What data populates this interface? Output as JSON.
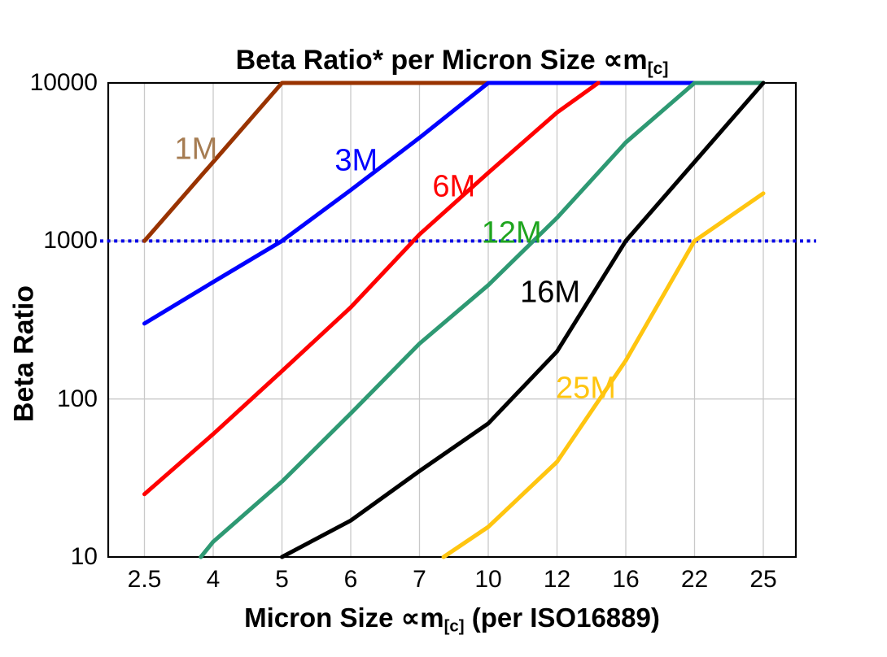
{
  "title": {
    "main": "Beta Ratio* per Micron Size ∝m",
    "sub": "[c]"
  },
  "y_axis": {
    "title": "Beta Ratio",
    "tick_labels": [
      "10000",
      "1000",
      "100",
      "10"
    ],
    "tick_values": [
      10000,
      1000,
      100,
      10
    ],
    "gridlines": [
      100,
      1000
    ]
  },
  "x_axis": {
    "title_pre": "Micron Size ∝m",
    "title_sub": "[c]",
    "title_post": " (per ISO16889)",
    "categories": [
      "2.5",
      "4",
      "5",
      "6",
      "7",
      "10",
      "12",
      "16",
      "22",
      "25"
    ]
  },
  "chart_data": {
    "type": "line",
    "title": "Beta Ratio* per Micron Size ∝m[c]",
    "xlabel": "Micron Size ∝m[c] (per ISO16889)",
    "ylabel": "Beta Ratio",
    "x_scale": "categorical",
    "y_scale": "log",
    "ylim": [
      10,
      10000
    ],
    "y_ticks": [
      10,
      100,
      1000,
      10000
    ],
    "grid": "on",
    "legend": "inline-labels",
    "x_categories": [
      "2.5",
      "4",
      "5",
      "6",
      "7",
      "10",
      "12",
      "16",
      "22",
      "25"
    ],
    "reference_line": {
      "y": 1000,
      "style": "dotted",
      "color": "#0000E6"
    },
    "series": [
      {
        "name": "1M",
        "color": "#993300",
        "label_color": "#A67C52",
        "values_by_category": [
          1000,
          3160,
          10000,
          10000,
          10000,
          10000,
          null,
          null,
          null,
          null
        ],
        "points": [
          [
            0,
            1000
          ],
          [
            1,
            3160
          ],
          [
            2,
            10000
          ],
          [
            5,
            10000
          ]
        ],
        "label_at": [
          0.75,
          3800
        ]
      },
      {
        "name": "3M",
        "color": "#0000FF",
        "label_color": "#0000FF",
        "values_by_category": [
          300,
          550,
          1000,
          2100,
          4500,
          10000,
          10000,
          10000,
          10000,
          null
        ],
        "points": [
          [
            0,
            300
          ],
          [
            1,
            550
          ],
          [
            2,
            1000
          ],
          [
            3,
            2100
          ],
          [
            4,
            4500
          ],
          [
            5,
            10000
          ],
          [
            8,
            10000
          ]
        ],
        "label_at": [
          3.08,
          3200
        ]
      },
      {
        "name": "6M",
        "color": "#FF0000",
        "label_color": "#FF0000",
        "values_by_category": [
          25,
          60,
          150,
          380,
          1100,
          2700,
          6500,
          10000,
          null,
          null
        ],
        "points": [
          [
            0,
            25
          ],
          [
            1,
            60
          ],
          [
            2,
            150
          ],
          [
            3,
            380
          ],
          [
            4,
            1100
          ],
          [
            5,
            2700
          ],
          [
            6,
            6500
          ],
          [
            6.6,
            10000
          ]
        ],
        "label_at": [
          4.5,
          2200
        ]
      },
      {
        "name": "12M",
        "color": "#2E9973",
        "label_color": "#1FA51F",
        "values_by_category": [
          null,
          12.5,
          30,
          81,
          224,
          525,
          1400,
          4200,
          10000,
          10000
        ],
        "points": [
          [
            0.82,
            10
          ],
          [
            1,
            12.5
          ],
          [
            2,
            30
          ],
          [
            3,
            81
          ],
          [
            4,
            224
          ],
          [
            5,
            525
          ],
          [
            6,
            1400
          ],
          [
            7,
            4200
          ],
          [
            8,
            10000
          ],
          [
            9,
            10000
          ]
        ],
        "label_at": [
          5.34,
          1120
        ]
      },
      {
        "name": "16M",
        "color": "#000000",
        "label_color": "#000000",
        "values_by_category": [
          null,
          null,
          10,
          17,
          35,
          70,
          200,
          1000,
          3160,
          10000
        ],
        "points": [
          [
            2,
            10
          ],
          [
            3,
            17
          ],
          [
            4,
            35
          ],
          [
            5,
            70
          ],
          [
            6,
            200
          ],
          [
            7,
            1000
          ],
          [
            8,
            3160
          ],
          [
            9,
            10000
          ]
        ],
        "label_at": [
          5.9,
          470
        ]
      },
      {
        "name": "25M",
        "color": "#FFC510",
        "label_color": "#FFC510",
        "values_by_category": [
          null,
          null,
          null,
          null,
          null,
          15.5,
          40,
          175,
          1000,
          2000
        ],
        "points": [
          [
            4.35,
            10
          ],
          [
            5,
            15.5
          ],
          [
            6,
            40
          ],
          [
            7,
            175
          ],
          [
            8,
            1000
          ],
          [
            9,
            2000
          ]
        ],
        "label_at": [
          6.42,
          116
        ]
      }
    ]
  }
}
